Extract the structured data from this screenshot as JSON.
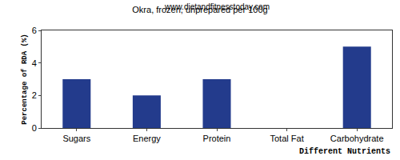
{
  "chart_data": {
    "type": "bar",
    "title": "Okra, frozen, unprepared per 100g",
    "subtitle": "www.dietandfitnesstoday.com",
    "x_label": "Different Nutrients",
    "y_label": "Percentage of RDA (%)",
    "categories": [
      "Sugars",
      "Energy",
      "Protein",
      "Total Fat",
      "Carbohydrate"
    ],
    "values": [
      3,
      2,
      3,
      0,
      5
    ],
    "color": "#233b8c",
    "ylim": [
      0,
      6
    ],
    "yticks": [
      0,
      2,
      4,
      6
    ],
    "grid": false
  }
}
